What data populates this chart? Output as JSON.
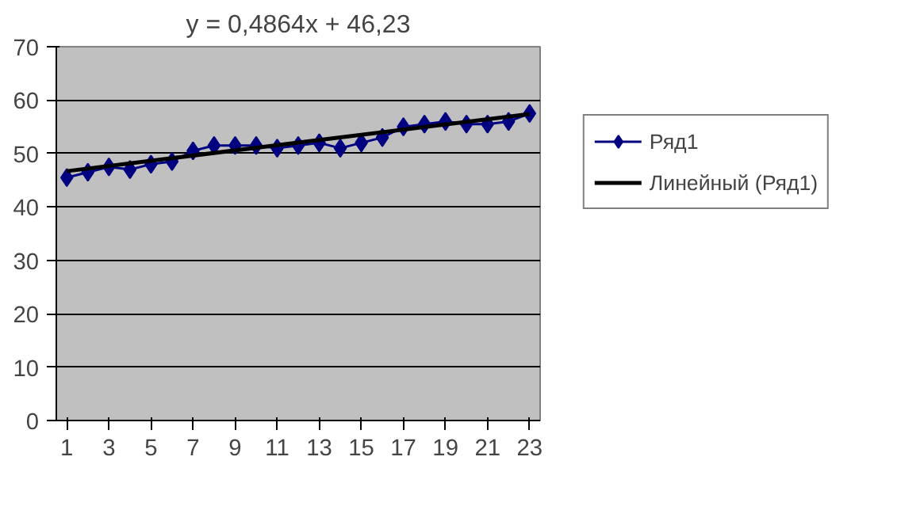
{
  "chart_data": {
    "type": "line",
    "title": "y = 0,4864x + 46,23",
    "x": [
      1,
      2,
      3,
      4,
      5,
      6,
      7,
      8,
      9,
      10,
      11,
      12,
      13,
      14,
      15,
      16,
      17,
      18,
      19,
      20,
      21,
      22,
      23
    ],
    "series": [
      {
        "name": "Ряд1",
        "color": "#000080",
        "marker": "diamond",
        "values": [
          45.5,
          46.5,
          47.5,
          47,
          48,
          48.5,
          50.5,
          51.5,
          51.5,
          51.5,
          51,
          51.5,
          52,
          51,
          52,
          53,
          55,
          55.5,
          56,
          55.5,
          55.5,
          56,
          57.5
        ]
      },
      {
        "name": "Линейный (Ряд1)",
        "color": "#000000",
        "marker": "none",
        "x": [
          1,
          23
        ],
        "values": [
          46.7,
          57.4
        ]
      }
    ],
    "xlim": [
      0.5,
      23.5
    ],
    "xticks": [
      1,
      3,
      5,
      7,
      9,
      11,
      13,
      15,
      17,
      19,
      21,
      23
    ],
    "ylim": [
      0,
      70
    ],
    "yticks": [
      0,
      10,
      20,
      30,
      40,
      50,
      60,
      70
    ],
    "grid": "y",
    "legend": "right"
  }
}
